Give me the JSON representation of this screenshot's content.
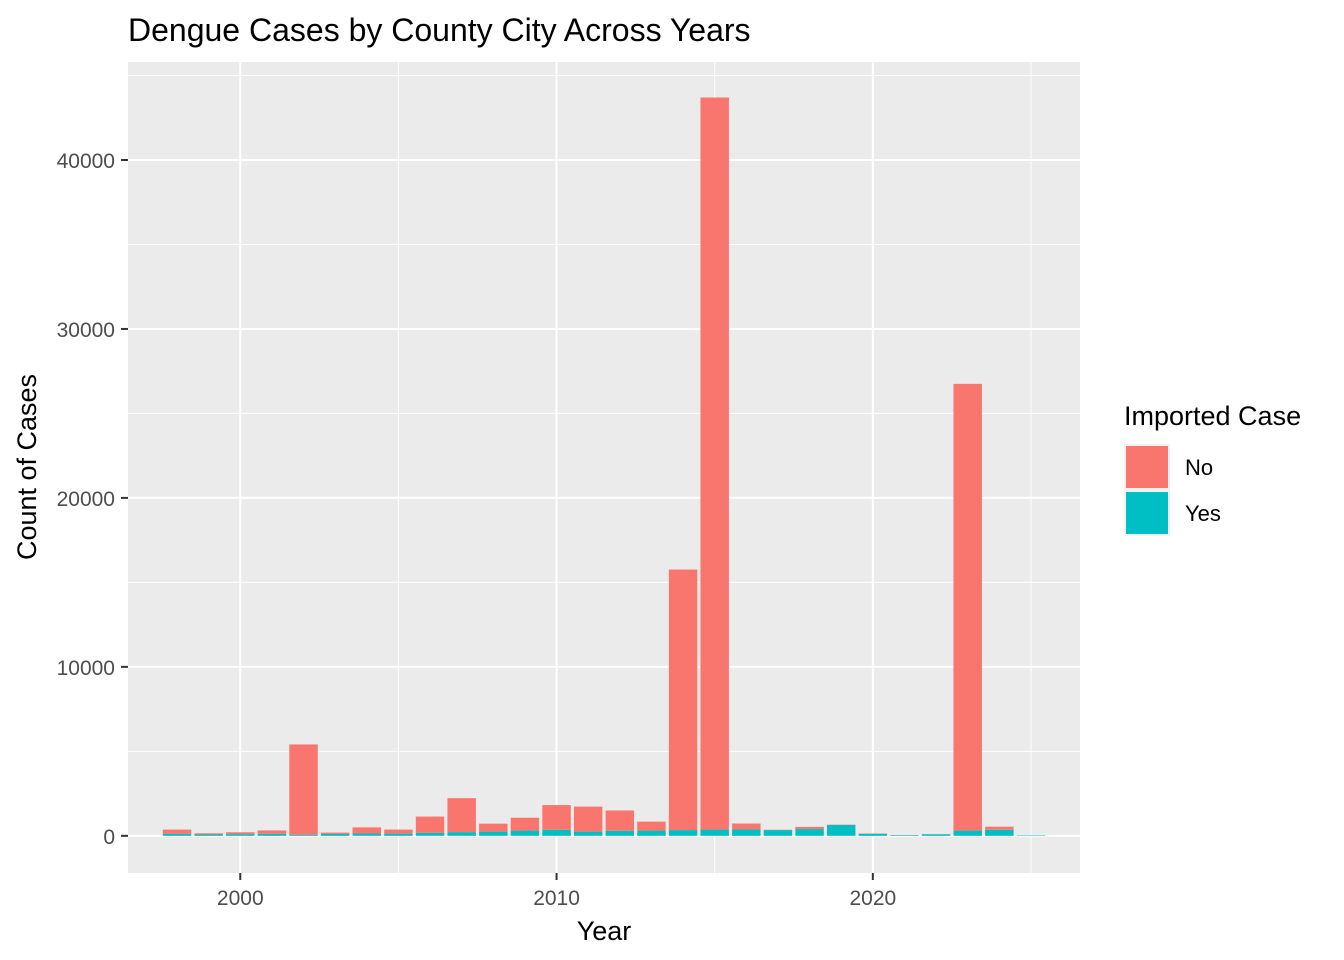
{
  "chart_data": {
    "type": "bar",
    "stacked": true,
    "title": "Dengue Cases by County City Across Years",
    "xlabel": "Year",
    "ylabel": "Count of Cases",
    "x": [
      1998,
      1999,
      2000,
      2001,
      2002,
      2003,
      2004,
      2005,
      2006,
      2007,
      2008,
      2009,
      2010,
      2011,
      2012,
      2013,
      2014,
      2015,
      2016,
      2017,
      2018,
      2019,
      2020,
      2021,
      2022,
      2023,
      2024,
      2025
    ],
    "xticks": [
      2000,
      2010,
      2020
    ],
    "xtick_labels": [
      "2000",
      "2010",
      "2020"
    ],
    "yticks": [
      0,
      10000,
      20000,
      30000,
      40000
    ],
    "ytick_labels": [
      "0",
      "10000",
      "20000",
      "30000",
      "40000"
    ],
    "xlim": [
      1996.45,
      2026.55
    ],
    "ylim": [
      -2200,
      45800
    ],
    "grid": true,
    "legend": {
      "title": "Imported Case",
      "position": "right"
    },
    "series": [
      {
        "name": "No",
        "color": "#F8766D",
        "values": [
          250,
          70,
          110,
          200,
          5350,
          80,
          360,
          240,
          960,
          2010,
          470,
          760,
          1460,
          1480,
          1200,
          530,
          15420,
          43330,
          350,
          20,
          130,
          20,
          20,
          10,
          10,
          26440,
          180,
          0
        ]
      },
      {
        "name": "Yes",
        "color": "#00BFC4",
        "values": [
          120,
          80,
          100,
          120,
          60,
          110,
          140,
          130,
          180,
          220,
          250,
          310,
          360,
          250,
          300,
          310,
          340,
          370,
          380,
          340,
          400,
          640,
          120,
          40,
          90,
          310,
          360,
          30
        ]
      }
    ]
  }
}
